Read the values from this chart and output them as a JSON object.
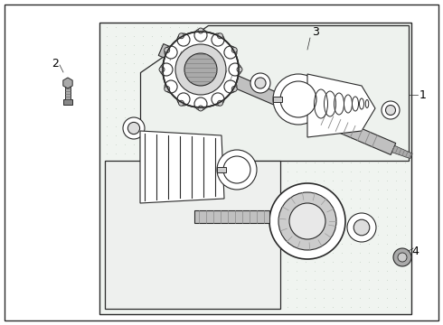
{
  "fig_width": 4.9,
  "fig_height": 3.6,
  "dpi": 100,
  "bg_color": "#ffffff",
  "panel_bg": "#f0f0f0",
  "dot_color": "#cccccc",
  "line_color": "#2a2a2a",
  "part_fill": "#ffffff",
  "part_gray": "#cccccc",
  "part_dark": "#888888",
  "label_fontsize": 9
}
